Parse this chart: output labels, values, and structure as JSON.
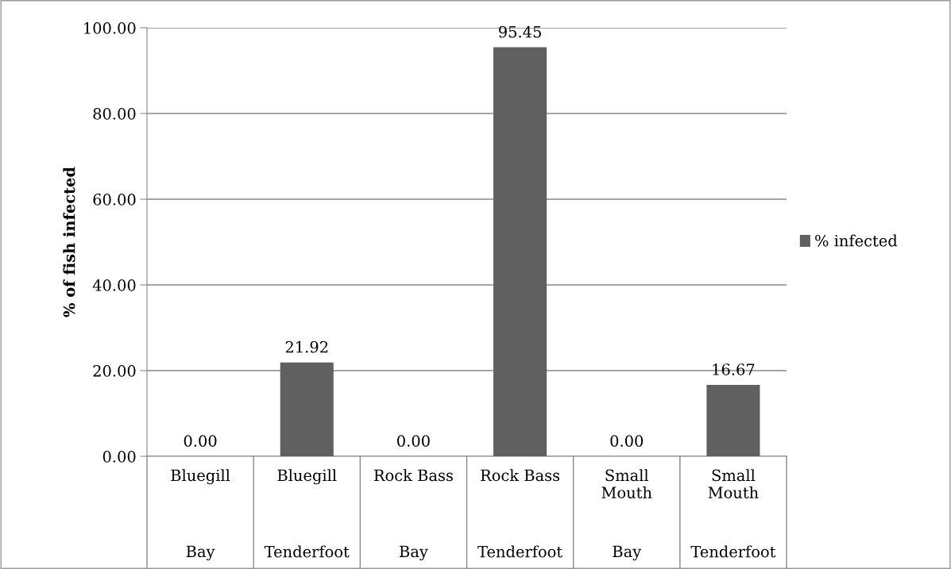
{
  "chart_data": {
    "type": "bar",
    "ylabel": "% of fish infected",
    "categories": [
      "Bluegill\nBay",
      "Bluegill\nTenderfoot",
      "Rock Bass\nBay",
      "Rock Bass\nTenderfoot",
      "Small\nMouth\nBay",
      "Small\nMouth\nTenderfoot"
    ],
    "series": [
      {
        "name": "% infected",
        "color": "#606060",
        "values": [
          0,
          21.92,
          0,
          95.45,
          0,
          16.67
        ],
        "value_labels": [
          "0.00",
          "21.92",
          "0.00",
          "95.45",
          "0.00",
          "16.67"
        ]
      }
    ],
    "ylim": [
      0,
      100
    ],
    "yticks": [
      {
        "value": 0,
        "label": "0.00"
      },
      {
        "value": 20,
        "label": "20.00"
      },
      {
        "value": 40,
        "label": "40.00"
      },
      {
        "value": 60,
        "label": "60.00"
      },
      {
        "value": 80,
        "label": "80.00"
      },
      {
        "value": 100,
        "label": "100.00"
      }
    ],
    "grid": "y",
    "legend": "right"
  }
}
